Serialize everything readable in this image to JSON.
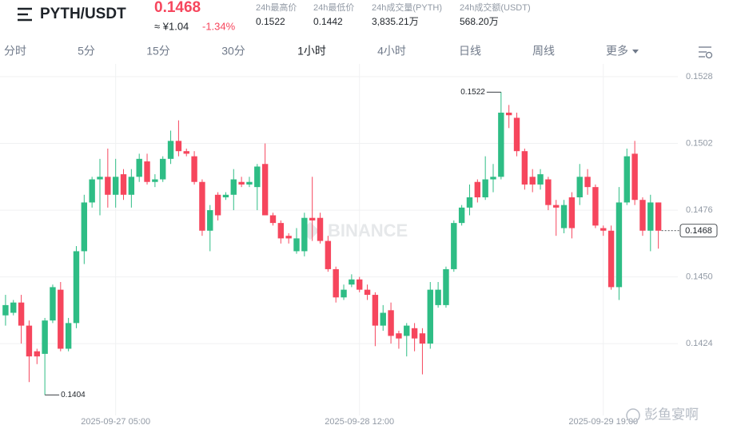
{
  "header": {
    "pair": "PYTH/USDT",
    "price": "0.1468",
    "cny": "≈ ¥1.04",
    "change": "-1.34%",
    "stats": [
      {
        "label": "24h最高价",
        "value": "0.1522"
      },
      {
        "label": "24h最低价",
        "value": "0.1442"
      },
      {
        "label": "24h成交量(PYTH)",
        "value": "3,835.21万"
      },
      {
        "label": "24h成交额(USDT)",
        "value": "568.20万"
      }
    ]
  },
  "tabs": [
    "分时",
    "5分",
    "15分",
    "30分",
    "1小时",
    "4小时",
    "日线",
    "周线",
    "更多"
  ],
  "active_tab": "1小时",
  "watermark": "BINANCE",
  "source_mark": "彭鱼宴啊",
  "chart_data": {
    "type": "candlestick",
    "up_color": "#2ebd85",
    "down_color": "#f6465d",
    "grid": true,
    "ylim": [
      0.1396,
      0.1533
    ],
    "yticks": [
      0.1528,
      0.1502,
      0.1476,
      {
        "value": 0.145,
        "label": "0.1450"
      },
      0.1424
    ],
    "categories": [
      null,
      null,
      null,
      null,
      null,
      null,
      null,
      null,
      null,
      null,
      null,
      null,
      null,
      null,
      "2025-09-27 05:00",
      null,
      null,
      null,
      null,
      null,
      null,
      null,
      null,
      null,
      null,
      null,
      null,
      null,
      null,
      null,
      null,
      null,
      null,
      null,
      null,
      null,
      null,
      null,
      null,
      null,
      null,
      null,
      null,
      null,
      null,
      "2025-09-28 12:00",
      null,
      null,
      null,
      null,
      null,
      null,
      null,
      null,
      null,
      null,
      null,
      null,
      null,
      null,
      null,
      null,
      null,
      null,
      null,
      null,
      null,
      null,
      null,
      null,
      null,
      null,
      null,
      null,
      null,
      null,
      "2025-09-29 19:00",
      null,
      null,
      null,
      null,
      null,
      null,
      null
    ],
    "open": [
      0.1435,
      0.1436,
      0.144,
      0.1431,
      0.1421,
      0.142,
      0.1433,
      0.1445,
      0.1422,
      0.1432,
      0.146,
      0.1479,
      0.1488,
      0.1489,
      0.1482,
      0.149,
      0.1482,
      0.1489,
      0.1495,
      0.1487,
      0.1488,
      0.1496,
      0.1503,
      0.1499,
      0.1497,
      0.1487,
      0.1468,
      0.1482,
      0.1481,
      0.1482,
      0.1487,
      0.1486,
      0.1485,
      0.1494,
      0.1474,
      0.1471,
      0.1466,
      0.146,
      0.146,
      0.1473,
      0.1473,
      0.1464,
      0.1453,
      0.1442,
      0.1447,
      0.1449,
      0.1445,
      0.1443,
      0.1431,
      0.1437,
      0.1428,
      0.1427,
      0.143,
      0.1428,
      0.1424,
      0.1439,
      0.1439,
      0.1453,
      0.1471,
      0.1477,
      0.1487,
      0.1481,
      0.1488,
      0.1489,
      0.1514,
      0.1512,
      0.1499,
      0.1489,
      0.1486,
      0.1488,
      0.1478,
      0.1469,
      0.1481,
      0.1481,
      0.1489,
      0.1485,
      0.1469,
      0.1468,
      0.1446,
      0.1479,
      0.1498,
      0.148,
      0.1468,
      0.1479
    ],
    "high": [
      0.1443,
      0.1441,
      0.1443,
      0.1433,
      0.1422,
      0.1434,
      0.1447,
      0.1448,
      0.1434,
      0.1462,
      0.1482,
      0.1489,
      0.1496,
      0.15,
      0.1496,
      0.1492,
      0.1492,
      0.1498,
      0.1498,
      0.149,
      0.1497,
      0.1507,
      0.1511,
      0.15,
      0.1499,
      0.1488,
      0.1478,
      0.1483,
      0.1483,
      0.1492,
      0.1489,
      0.1489,
      0.1494,
      0.1502,
      0.1475,
      0.1472,
      0.1467,
      0.1469,
      0.1475,
      0.1489,
      0.1475,
      0.1466,
      0.1454,
      0.1447,
      0.1451,
      0.145,
      0.1447,
      0.1444,
      0.1439,
      0.144,
      0.1429,
      0.1432,
      0.1432,
      0.143,
      0.1448,
      0.1448,
      0.1454,
      0.1472,
      0.1478,
      0.1486,
      0.1488,
      0.1497,
      0.1494,
      0.1522,
      0.1517,
      0.1514,
      0.15,
      0.1492,
      0.1492,
      0.1489,
      0.148,
      0.148,
      0.1483,
      0.1494,
      0.1492,
      0.1486,
      0.147,
      0.147,
      0.1485,
      0.15,
      0.1503,
      0.1481,
      0.1482,
      0.1479
    ],
    "low": [
      0.1431,
      0.1435,
      0.1424,
      0.1409,
      0.1416,
      0.1404,
      0.1432,
      0.1421,
      0.1421,
      0.143,
      0.1455,
      0.1477,
      0.1474,
      0.1477,
      0.1477,
      0.148,
      0.1477,
      0.1487,
      0.1486,
      0.1485,
      0.1487,
      0.1494,
      0.1497,
      0.1497,
      0.1486,
      0.1466,
      0.146,
      0.1472,
      0.148,
      0.1476,
      0.1485,
      0.1485,
      0.1476,
      0.1474,
      0.147,
      0.1463,
      0.1463,
      0.1459,
      0.1458,
      0.1464,
      0.1463,
      0.1452,
      0.144,
      0.1441,
      0.1446,
      0.1444,
      0.1441,
      0.1423,
      0.1429,
      0.1424,
      0.1422,
      0.1419,
      0.1421,
      0.1412,
      0.1422,
      0.1438,
      0.1438,
      0.1452,
      0.147,
      0.1474,
      0.1479,
      0.148,
      0.1483,
      0.1488,
      0.1508,
      0.1497,
      0.1484,
      0.1483,
      0.1484,
      0.1476,
      0.1466,
      0.1467,
      0.1465,
      0.1478,
      0.1482,
      0.1469,
      0.1466,
      0.1445,
      0.1441,
      0.1478,
      0.1478,
      0.1466,
      0.146,
      0.1461
    ],
    "close": [
      0.1439,
      0.144,
      0.1431,
      0.1419,
      0.1419,
      0.1433,
      0.1446,
      0.1422,
      0.1432,
      0.146,
      0.1479,
      0.1488,
      0.1489,
      0.1482,
      0.1489,
      0.1482,
      0.1489,
      0.1496,
      0.1487,
      0.1488,
      0.1496,
      0.1503,
      0.1499,
      0.1498,
      0.1487,
      0.1468,
      0.1476,
      0.1474,
      0.1482,
      0.1488,
      0.1486,
      0.1487,
      0.1493,
      0.1474,
      0.1471,
      0.1465,
      0.1465,
      0.1465,
      0.1473,
      0.1472,
      0.1464,
      0.1453,
      0.1442,
      0.1445,
      0.1449,
      0.1445,
      0.1443,
      0.1431,
      0.1436,
      0.1427,
      0.1426,
      0.1431,
      0.1426,
      0.1424,
      0.1445,
      0.1445,
      0.1453,
      0.1471,
      0.1477,
      0.1481,
      0.1481,
      0.1488,
      0.1489,
      0.1514,
      0.1513,
      0.1499,
      0.1486,
      0.1486,
      0.149,
      0.1478,
      0.1477,
      0.1478,
      0.1469,
      0.1489,
      0.1485,
      0.147,
      0.1468,
      0.1446,
      0.1479,
      0.1497,
      0.148,
      0.1468,
      0.1479,
      0.1468
    ]
  }
}
